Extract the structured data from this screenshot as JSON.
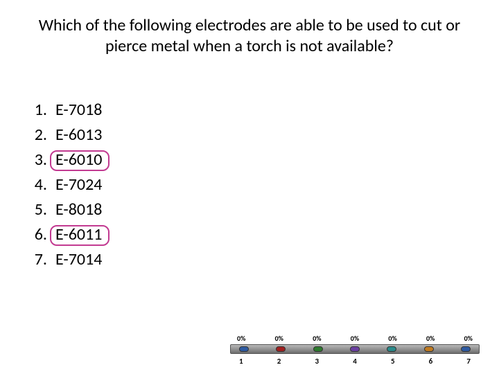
{
  "question": "Which of the following electrodes are able to be used to cut or pierce metal when a torch is not available?",
  "options": [
    {
      "num": "1.",
      "label": "E-7018",
      "boxed": false
    },
    {
      "num": "2.",
      "label": "E-6013",
      "boxed": false
    },
    {
      "num": "3.",
      "label": "E-6010",
      "boxed": true
    },
    {
      "num": "4.",
      "label": "E-7024",
      "boxed": false
    },
    {
      "num": "5.",
      "label": "E-8018",
      "boxed": false
    },
    {
      "num": "6.",
      "label": "E-6011",
      "boxed": true
    },
    {
      "num": "7.",
      "label": "E-7014",
      "boxed": false
    }
  ],
  "highlight": {
    "border_color": "#c23a91",
    "radius": 10,
    "width": 86,
    "height": 30
  },
  "poll": {
    "percent_label": "0%",
    "count": 7,
    "dot_colors": [
      "#2e5aa0",
      "#a02020",
      "#2e7a2e",
      "#6a3fa0",
      "#2a8a8a",
      "#c07a20",
      "#2e5aa0"
    ],
    "bar_bg_top": "#b8b8b8",
    "bar_bg_bottom": "#6e6e6e"
  },
  "colors": {
    "text": "#000000",
    "background": "#ffffff"
  },
  "typography": {
    "question_fontsize": 24,
    "option_fontsize": 24,
    "poll_pct_fontsize": 10,
    "poll_num_fontsize": 11
  }
}
